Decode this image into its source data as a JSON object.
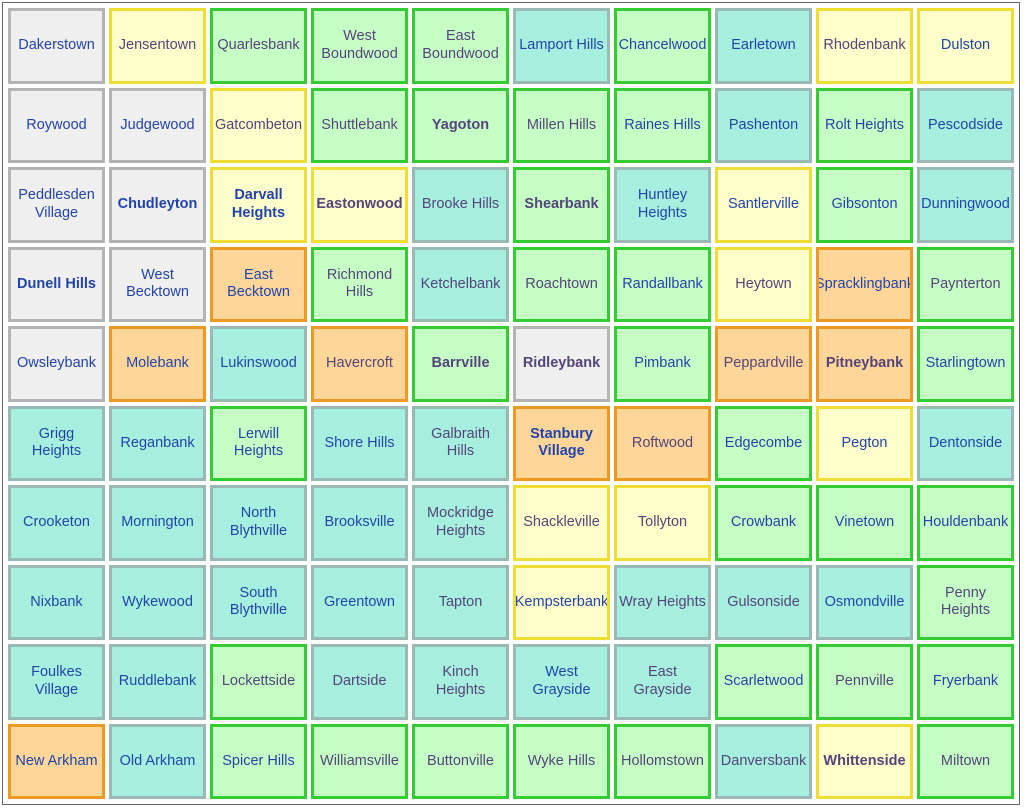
{
  "palette": {
    "gray_bg": "#efefef",
    "yellow_bg": "#ffffcc",
    "green_bg": "#c6ffc6",
    "teal_bg": "#a6efde",
    "orange_bg": "#ffd699",
    "green_border": "#33cc33",
    "yellow_border": "#eedd33",
    "orange_border": "#ee9922",
    "blue_text": "#2244aa",
    "purple_text": "#55447a"
  },
  "rows": [
    [
      {
        "name": "Dakerstown",
        "bg": "gray",
        "border": "gray",
        "color": "blue",
        "bold": false
      },
      {
        "name": "Jensentown",
        "bg": "yellow",
        "border": "yellow",
        "color": "purple",
        "bold": false
      },
      {
        "name": "Quarlesbank",
        "bg": "green",
        "border": "green",
        "color": "purple",
        "bold": false
      },
      {
        "name": "West Boundwood",
        "bg": "green",
        "border": "green",
        "color": "purple",
        "bold": false
      },
      {
        "name": "East Boundwood",
        "bg": "green",
        "border": "green",
        "color": "purple",
        "bold": false
      },
      {
        "name": "Lamport Hills",
        "bg": "teal",
        "border": "teal",
        "color": "blue",
        "bold": false
      },
      {
        "name": "Chancelwood",
        "bg": "green",
        "border": "green",
        "color": "blue",
        "bold": false
      },
      {
        "name": "Earletown",
        "bg": "teal",
        "border": "teal",
        "color": "blue",
        "bold": false
      },
      {
        "name": "Rhodenbank",
        "bg": "yellow",
        "border": "yellow",
        "color": "purple",
        "bold": false
      },
      {
        "name": "Dulston",
        "bg": "yellow",
        "border": "yellow",
        "color": "blue",
        "bold": false
      }
    ],
    [
      {
        "name": "Roywood",
        "bg": "gray",
        "border": "gray",
        "color": "blue",
        "bold": false
      },
      {
        "name": "Judgewood",
        "bg": "gray",
        "border": "gray",
        "color": "blue",
        "bold": false
      },
      {
        "name": "Gatcombeton",
        "bg": "yellow",
        "border": "yellow",
        "color": "purple",
        "bold": false
      },
      {
        "name": "Shuttlebank",
        "bg": "green",
        "border": "green",
        "color": "purple",
        "bold": false
      },
      {
        "name": "Yagoton",
        "bg": "green",
        "border": "green",
        "color": "purple",
        "bold": true
      },
      {
        "name": "Millen Hills",
        "bg": "green",
        "border": "green",
        "color": "purple",
        "bold": false
      },
      {
        "name": "Raines Hills",
        "bg": "green",
        "border": "green",
        "color": "blue",
        "bold": false
      },
      {
        "name": "Pashenton",
        "bg": "teal",
        "border": "teal",
        "color": "blue",
        "bold": false
      },
      {
        "name": "Rolt Heights",
        "bg": "green",
        "border": "green",
        "color": "blue",
        "bold": false
      },
      {
        "name": "Pescodside",
        "bg": "teal",
        "border": "teal",
        "color": "blue",
        "bold": false
      }
    ],
    [
      {
        "name": "Peddlesden Village",
        "bg": "gray",
        "border": "gray",
        "color": "blue",
        "bold": false
      },
      {
        "name": "Chudleyton",
        "bg": "gray",
        "border": "gray",
        "color": "blue",
        "bold": true
      },
      {
        "name": "Darvall Heights",
        "bg": "yellow",
        "border": "yellow",
        "color": "blue",
        "bold": true
      },
      {
        "name": "Eastonwood",
        "bg": "yellow",
        "border": "yellow",
        "color": "purple",
        "bold": true
      },
      {
        "name": "Brooke Hills",
        "bg": "teal",
        "border": "teal",
        "color": "purple",
        "bold": false
      },
      {
        "name": "Shearbank",
        "bg": "green",
        "border": "green",
        "color": "purple",
        "bold": true
      },
      {
        "name": "Huntley Heights",
        "bg": "teal",
        "border": "teal",
        "color": "blue",
        "bold": false
      },
      {
        "name": "Santlerville",
        "bg": "yellow",
        "border": "yellow",
        "color": "blue",
        "bold": false
      },
      {
        "name": "Gibsonton",
        "bg": "green",
        "border": "green",
        "color": "blue",
        "bold": false
      },
      {
        "name": "Dunningwood",
        "bg": "teal",
        "border": "teal",
        "color": "blue",
        "bold": false
      }
    ],
    [
      {
        "name": "Dunell Hills",
        "bg": "gray",
        "border": "gray",
        "color": "blue",
        "bold": true
      },
      {
        "name": "West Becktown",
        "bg": "gray",
        "border": "gray",
        "color": "blue",
        "bold": false
      },
      {
        "name": "East Becktown",
        "bg": "orange",
        "border": "orange",
        "color": "blue",
        "bold": false
      },
      {
        "name": "Richmond Hills",
        "bg": "green",
        "border": "green",
        "color": "purple",
        "bold": false
      },
      {
        "name": "Ketchelbank",
        "bg": "teal",
        "border": "teal",
        "color": "purple",
        "bold": false
      },
      {
        "name": "Roachtown",
        "bg": "green",
        "border": "green",
        "color": "purple",
        "bold": false
      },
      {
        "name": "Randallbank",
        "bg": "green",
        "border": "green",
        "color": "blue",
        "bold": false
      },
      {
        "name": "Heytown",
        "bg": "yellow",
        "border": "yellow",
        "color": "purple",
        "bold": false
      },
      {
        "name": "Spracklingbank",
        "bg": "orange",
        "border": "orange",
        "color": "blue",
        "bold": false
      },
      {
        "name": "Paynterton",
        "bg": "green",
        "border": "green",
        "color": "purple",
        "bold": false
      }
    ],
    [
      {
        "name": "Owsleybank",
        "bg": "gray",
        "border": "gray",
        "color": "blue",
        "bold": false
      },
      {
        "name": "Molebank",
        "bg": "orange",
        "border": "orange",
        "color": "blue",
        "bold": false
      },
      {
        "name": "Lukinswood",
        "bg": "teal",
        "border": "teal",
        "color": "blue",
        "bold": false
      },
      {
        "name": "Havercroft",
        "bg": "orange",
        "border": "orange",
        "color": "purple",
        "bold": false
      },
      {
        "name": "Barrville",
        "bg": "green",
        "border": "green",
        "color": "purple",
        "bold": true
      },
      {
        "name": "Ridleybank",
        "bg": "gray",
        "border": "gray",
        "color": "purple",
        "bold": true
      },
      {
        "name": "Pimbank",
        "bg": "green",
        "border": "green",
        "color": "blue",
        "bold": false
      },
      {
        "name": "Peppardville",
        "bg": "orange",
        "border": "orange",
        "color": "purple",
        "bold": false
      },
      {
        "name": "Pitneybank",
        "bg": "orange",
        "border": "orange",
        "color": "purple",
        "bold": true
      },
      {
        "name": "Starlingtown",
        "bg": "green",
        "border": "green",
        "color": "blue",
        "bold": false
      }
    ],
    [
      {
        "name": "Grigg Heights",
        "bg": "teal",
        "border": "teal",
        "color": "blue",
        "bold": false
      },
      {
        "name": "Reganbank",
        "bg": "teal",
        "border": "teal",
        "color": "blue",
        "bold": false
      },
      {
        "name": "Lerwill Heights",
        "bg": "green",
        "border": "green",
        "color": "blue",
        "bold": false
      },
      {
        "name": "Shore Hills",
        "bg": "teal",
        "border": "teal",
        "color": "blue",
        "bold": false
      },
      {
        "name": "Galbraith Hills",
        "bg": "teal",
        "border": "teal",
        "color": "purple",
        "bold": false
      },
      {
        "name": "Stanbury Village",
        "bg": "orange",
        "border": "orange",
        "color": "blue",
        "bold": true
      },
      {
        "name": "Roftwood",
        "bg": "orange",
        "border": "orange",
        "color": "purple",
        "bold": false
      },
      {
        "name": "Edgecombe",
        "bg": "green",
        "border": "green",
        "color": "blue",
        "bold": false
      },
      {
        "name": "Pegton",
        "bg": "yellow",
        "border": "yellow",
        "color": "blue",
        "bold": false
      },
      {
        "name": "Dentonside",
        "bg": "teal",
        "border": "teal",
        "color": "blue",
        "bold": false
      }
    ],
    [
      {
        "name": "Crooketon",
        "bg": "teal",
        "border": "teal",
        "color": "blue",
        "bold": false
      },
      {
        "name": "Mornington",
        "bg": "teal",
        "border": "teal",
        "color": "blue",
        "bold": false
      },
      {
        "name": "North Blythville",
        "bg": "teal",
        "border": "teal",
        "color": "blue",
        "bold": false
      },
      {
        "name": "Brooksville",
        "bg": "teal",
        "border": "teal",
        "color": "blue",
        "bold": false
      },
      {
        "name": "Mockridge Heights",
        "bg": "teal",
        "border": "teal",
        "color": "purple",
        "bold": false
      },
      {
        "name": "Shackleville",
        "bg": "yellow",
        "border": "yellow",
        "color": "purple",
        "bold": false
      },
      {
        "name": "Tollyton",
        "bg": "yellow",
        "border": "yellow",
        "color": "purple",
        "bold": false
      },
      {
        "name": "Crowbank",
        "bg": "green",
        "border": "green",
        "color": "blue",
        "bold": false
      },
      {
        "name": "Vinetown",
        "bg": "green",
        "border": "green",
        "color": "blue",
        "bold": false
      },
      {
        "name": "Houldenbank",
        "bg": "green",
        "border": "green",
        "color": "blue",
        "bold": false
      }
    ],
    [
      {
        "name": "Nixbank",
        "bg": "teal",
        "border": "teal",
        "color": "blue",
        "bold": false
      },
      {
        "name": "Wykewood",
        "bg": "teal",
        "border": "teal",
        "color": "blue",
        "bold": false
      },
      {
        "name": "South Blythville",
        "bg": "teal",
        "border": "teal",
        "color": "blue",
        "bold": false
      },
      {
        "name": "Greentown",
        "bg": "teal",
        "border": "teal",
        "color": "blue",
        "bold": false
      },
      {
        "name": "Tapton",
        "bg": "teal",
        "border": "teal",
        "color": "purple",
        "bold": false
      },
      {
        "name": "Kempsterbank",
        "bg": "yellow",
        "border": "yellow",
        "color": "blue",
        "bold": false
      },
      {
        "name": "Wray Heights",
        "bg": "teal",
        "border": "teal",
        "color": "purple",
        "bold": false
      },
      {
        "name": "Gulsonside",
        "bg": "teal",
        "border": "teal",
        "color": "purple",
        "bold": false
      },
      {
        "name": "Osmondville",
        "bg": "teal",
        "border": "teal",
        "color": "blue",
        "bold": false
      },
      {
        "name": "Penny Heights",
        "bg": "green",
        "border": "green",
        "color": "purple",
        "bold": false
      }
    ],
    [
      {
        "name": "Foulkes Village",
        "bg": "teal",
        "border": "teal",
        "color": "blue",
        "bold": false
      },
      {
        "name": "Ruddlebank",
        "bg": "teal",
        "border": "teal",
        "color": "blue",
        "bold": false
      },
      {
        "name": "Lockettside",
        "bg": "green",
        "border": "green",
        "color": "purple",
        "bold": false
      },
      {
        "name": "Dartside",
        "bg": "teal",
        "border": "teal",
        "color": "purple",
        "bold": false
      },
      {
        "name": "Kinch Heights",
        "bg": "teal",
        "border": "teal",
        "color": "purple",
        "bold": false
      },
      {
        "name": "West Grayside",
        "bg": "teal",
        "border": "teal",
        "color": "blue",
        "bold": false
      },
      {
        "name": "East Grayside",
        "bg": "teal",
        "border": "teal",
        "color": "purple",
        "bold": false
      },
      {
        "name": "Scarletwood",
        "bg": "green",
        "border": "green",
        "color": "blue",
        "bold": false
      },
      {
        "name": "Pennville",
        "bg": "green",
        "border": "green",
        "color": "purple",
        "bold": false
      },
      {
        "name": "Fryerbank",
        "bg": "green",
        "border": "green",
        "color": "blue",
        "bold": false
      }
    ],
    [
      {
        "name": "New Arkham",
        "bg": "orange",
        "border": "orange",
        "color": "blue",
        "bold": false
      },
      {
        "name": "Old Arkham",
        "bg": "teal",
        "border": "teal",
        "color": "blue",
        "bold": false
      },
      {
        "name": "Spicer Hills",
        "bg": "green",
        "border": "green",
        "color": "blue",
        "bold": false
      },
      {
        "name": "Williamsville",
        "bg": "green",
        "border": "green",
        "color": "purple",
        "bold": false
      },
      {
        "name": "Buttonville",
        "bg": "green",
        "border": "green",
        "color": "purple",
        "bold": false
      },
      {
        "name": "Wyke Hills",
        "bg": "green",
        "border": "green",
        "color": "purple",
        "bold": false
      },
      {
        "name": "Hollomstown",
        "bg": "green",
        "border": "green",
        "color": "purple",
        "bold": false
      },
      {
        "name": "Danversbank",
        "bg": "teal",
        "border": "teal",
        "color": "purple",
        "bold": false
      },
      {
        "name": "Whittenside",
        "bg": "yellow",
        "border": "yellow",
        "color": "purple",
        "bold": true
      },
      {
        "name": "Miltown",
        "bg": "green",
        "border": "green",
        "color": "purple",
        "bold": false
      }
    ]
  ]
}
